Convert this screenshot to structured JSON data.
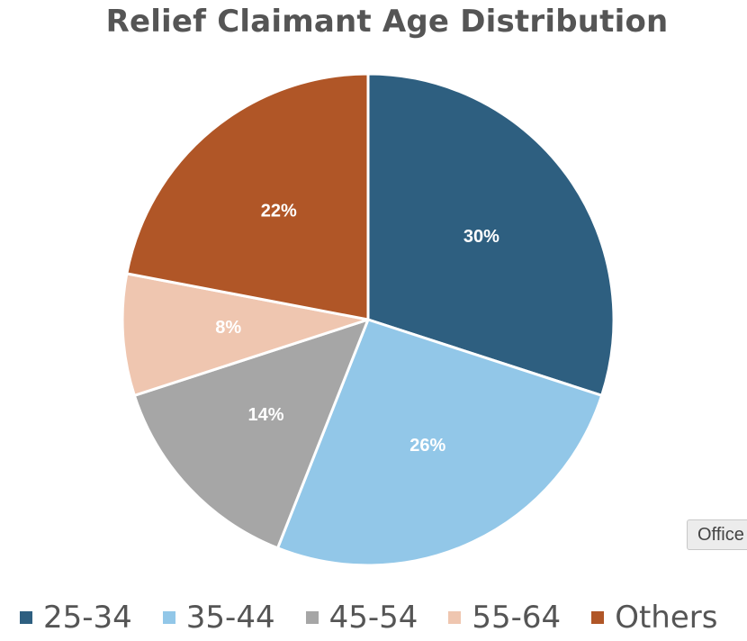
{
  "chart_data": {
    "type": "pie",
    "title": "Relief Claimant Age Distribution",
    "categories": [
      "25-34",
      "35-44",
      "45-54",
      "55-64",
      "Others"
    ],
    "values": [
      30,
      26,
      14,
      8,
      22
    ],
    "data_labels": [
      "30%",
      "26%",
      "14%",
      "8%",
      "22%"
    ],
    "colors": [
      "#2e5f80",
      "#92c7e8",
      "#a6a6a6",
      "#efc6b0",
      "#b05627"
    ],
    "start_angle_deg": 0,
    "direction": "clockwise",
    "legend_position": "bottom"
  },
  "tooltip": {
    "text": "Office"
  }
}
